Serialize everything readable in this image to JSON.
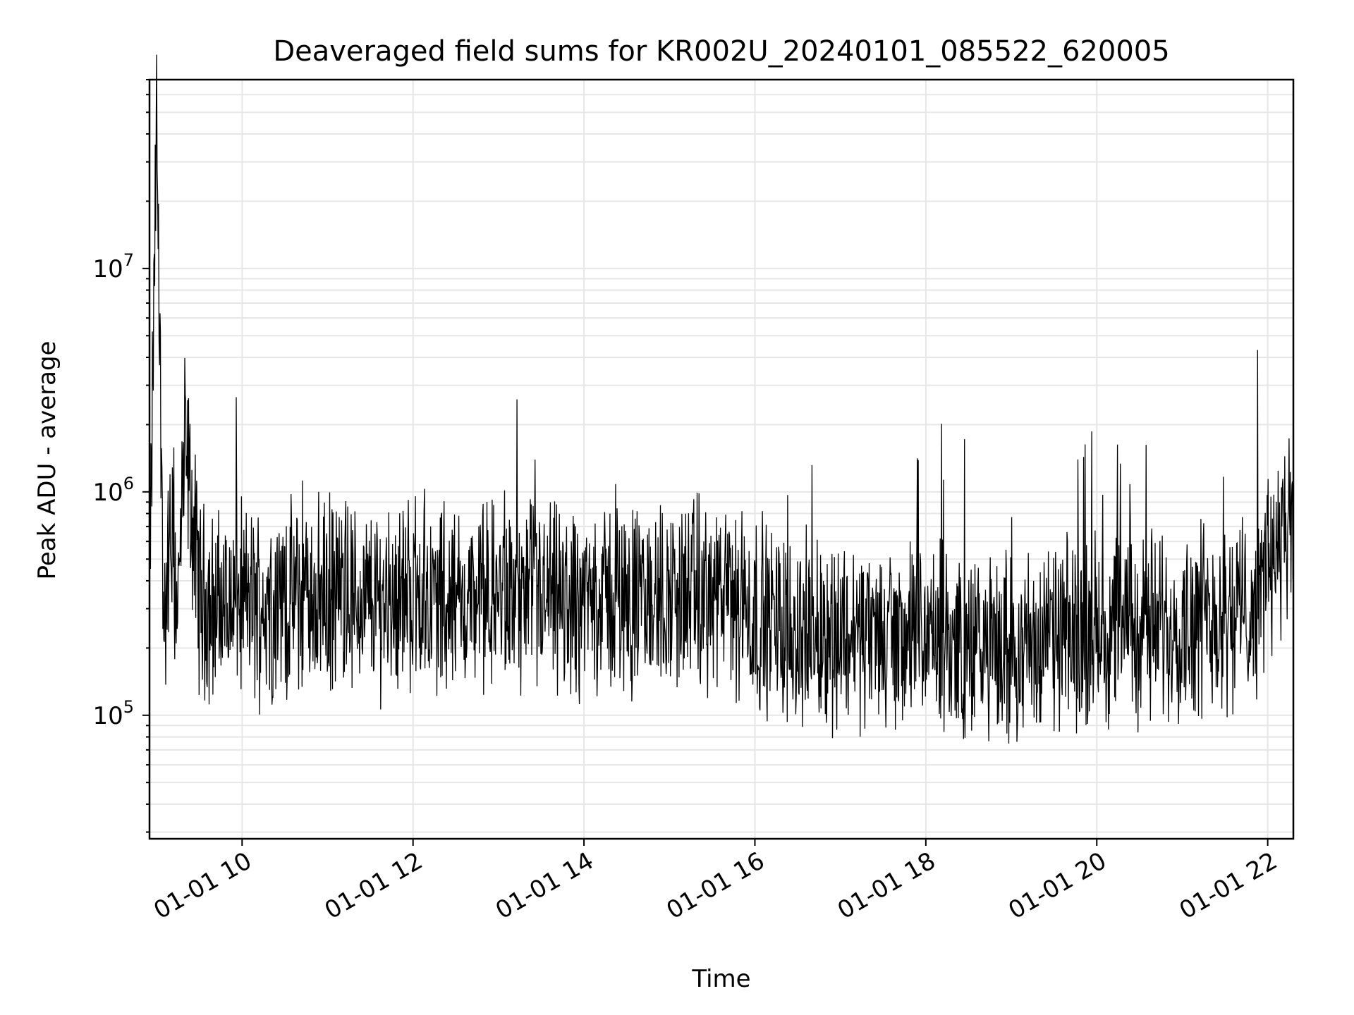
{
  "chart_data": {
    "type": "line",
    "title": "Deaveraged field sums for KR002U_20240101_085522_620005",
    "xlabel": "Time",
    "ylabel": "Peak ADU - average",
    "yscale": "log",
    "ylim": [
      28000,
      70000000
    ],
    "xlim": [
      "2024-01-01 08:55",
      "2024-01-01 22:18"
    ],
    "grid": true,
    "line_color": "#000000",
    "grid_color": "#e6e6e6",
    "x_ticks": [
      "01-01 10",
      "01-01 12",
      "01-01 14",
      "01-01 16",
      "01-01 18",
      "01-01 20",
      "01-01 22"
    ],
    "y_ticks": [
      {
        "base": "10",
        "exp": "5",
        "value": 100000
      },
      {
        "base": "10",
        "exp": "6",
        "value": 1000000
      },
      {
        "base": "10",
        "exp": "7",
        "value": 10000000
      }
    ],
    "series": [
      {
        "x": [
          "2024-01-01 08:55",
          "2024-01-01 09:00",
          "2024-01-01 09:05",
          "2024-01-01 09:10",
          "2024-01-01 09:15",
          "2024-01-01 09:20",
          "2024-01-01 09:30",
          "2024-01-01 09:40",
          "2024-01-01 09:50",
          "2024-01-01 10:00",
          "2024-01-01 10:10",
          "2024-01-01 10:20",
          "2024-01-01 10:30",
          "2024-01-01 10:45",
          "2024-01-01 11:00",
          "2024-01-01 11:15",
          "2024-01-01 11:30",
          "2024-01-01 11:45",
          "2024-01-01 12:00",
          "2024-01-01 12:15",
          "2024-01-01 12:30",
          "2024-01-01 12:45",
          "2024-01-01 13:00",
          "2024-01-01 13:15",
          "2024-01-01 13:30",
          "2024-01-01 13:45",
          "2024-01-01 14:00",
          "2024-01-01 14:15",
          "2024-01-01 14:30",
          "2024-01-01 14:45",
          "2024-01-01 15:00",
          "2024-01-01 15:15",
          "2024-01-01 15:30",
          "2024-01-01 15:45",
          "2024-01-01 16:00",
          "2024-01-01 16:15",
          "2024-01-01 16:30",
          "2024-01-01 16:45",
          "2024-01-01 17:00",
          "2024-01-01 17:15",
          "2024-01-01 17:30",
          "2024-01-01 17:45",
          "2024-01-01 18:00",
          "2024-01-01 18:15",
          "2024-01-01 18:30",
          "2024-01-01 18:45",
          "2024-01-01 19:00",
          "2024-01-01 19:15",
          "2024-01-01 19:30",
          "2024-01-01 19:45",
          "2024-01-01 20:00",
          "2024-01-01 20:15",
          "2024-01-01 20:30",
          "2024-01-01 20:45",
          "2024-01-01 21:00",
          "2024-01-01 21:15",
          "2024-01-01 21:30",
          "2024-01-01 21:45",
          "2024-01-01 21:55",
          "2024-01-01 22:00",
          "2024-01-01 22:10",
          "2024-01-01 22:18"
        ],
        "y": [
          300000,
          46000000,
          250000,
          600000,
          320000,
          1600000,
          350000,
          300000,
          320000,
          330000,
          310000,
          320000,
          330000,
          340000,
          350000,
          330000,
          320000,
          340000,
          360000,
          330000,
          320000,
          330000,
          340000,
          320000,
          330000,
          310000,
          320000,
          340000,
          330000,
          320000,
          340000,
          350000,
          330000,
          320000,
          290000,
          260000,
          240000,
          230000,
          240000,
          230000,
          220000,
          230000,
          220000,
          210000,
          200000,
          190000,
          200000,
          210000,
          220000,
          230000,
          240000,
          250000,
          260000,
          250000,
          270000,
          280000,
          290000,
          300000,
          320000,
          550000,
          580000,
          600000
        ]
      }
    ]
  }
}
